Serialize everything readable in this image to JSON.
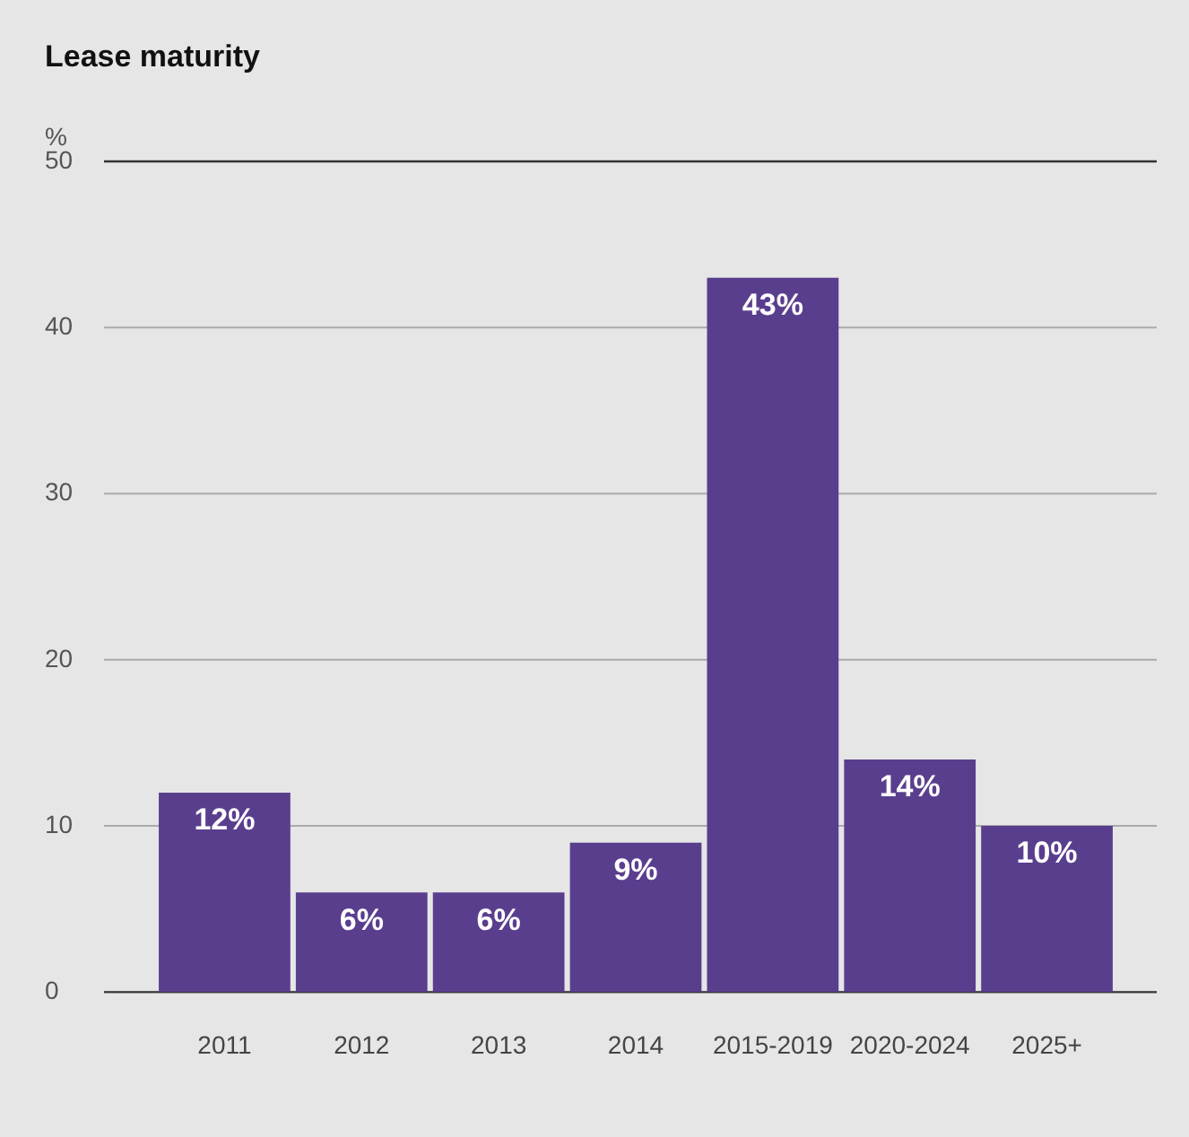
{
  "chart_data": {
    "type": "bar",
    "title": "Lease maturity",
    "ylabel": "%",
    "categories": [
      "2011",
      "2012",
      "2013",
      "2014",
      "2015-2019",
      "2020-2024",
      "2025+"
    ],
    "values": [
      12,
      6,
      6,
      9,
      43,
      14,
      10
    ],
    "color": "#5a3e8e",
    "ylim": [
      0,
      50
    ],
    "yticks": [
      0,
      10,
      20,
      30,
      40,
      50
    ],
    "grid": "y",
    "value_labels": [
      "12%",
      "6%",
      "6%",
      "9%",
      "43%",
      "14%",
      "10%"
    ]
  }
}
